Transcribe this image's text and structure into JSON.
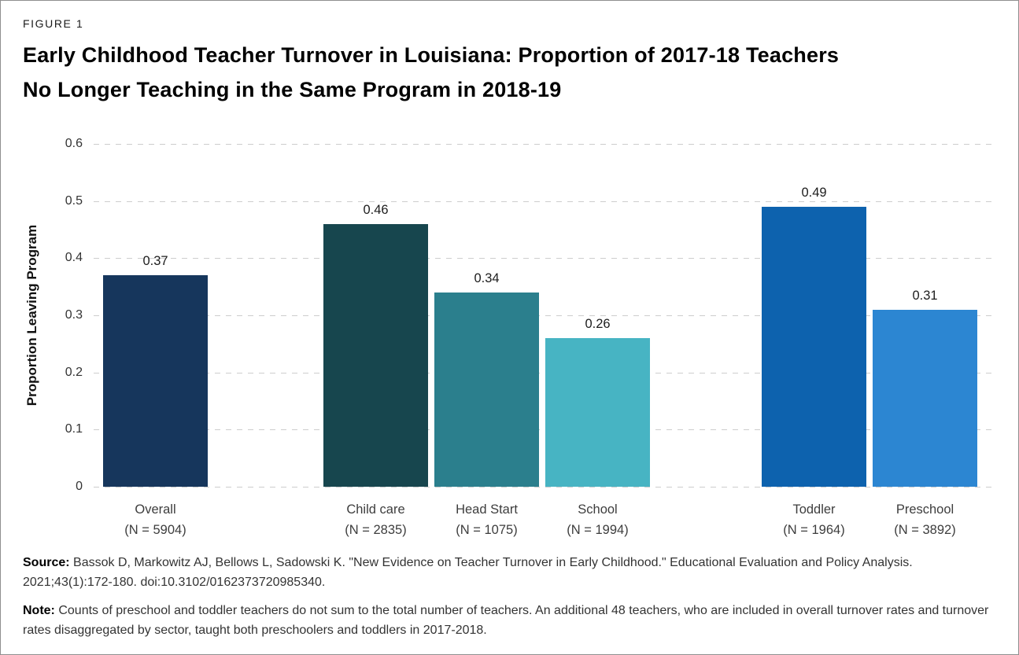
{
  "figure_label": "FIGURE 1",
  "title_line1": "Early Childhood Teacher Turnover in Louisiana: Proportion of 2017-18 Teachers",
  "title_line2": "No Longer Teaching in the Same Program in 2018-19",
  "chart_data": {
    "type": "bar",
    "title": "Early Childhood Teacher Turnover in Louisiana: Proportion of 2017-18 Teachers No Longer Teaching in the Same Program in 2018-19",
    "xlabel": "",
    "ylabel": "Proportion Leaving Program",
    "ylim": [
      0,
      0.6
    ],
    "yticks": [
      0,
      0.1,
      0.2,
      0.3,
      0.4,
      0.5,
      0.6
    ],
    "grid": "horizontal-dashed",
    "legend": "none",
    "categories": [
      "Overall",
      "Child care",
      "Head Start",
      "School",
      "Toddler",
      "Preschool"
    ],
    "values": [
      0.37,
      0.46,
      0.34,
      0.26,
      0.49,
      0.31
    ],
    "bars": [
      {
        "label": "Overall",
        "sublabel": "(N = 5904)",
        "value": 0.37,
        "value_label": "0.37",
        "color": "#16365c",
        "group": 0
      },
      {
        "label": "Child care",
        "sublabel": "(N = 2835)",
        "value": 0.46,
        "value_label": "0.46",
        "color": "#17464e",
        "group": 1
      },
      {
        "label": "Head Start",
        "sublabel": "(N = 1075)",
        "value": 0.34,
        "value_label": "0.34",
        "color": "#2b7f8d",
        "group": 1
      },
      {
        "label": "School",
        "sublabel": "(N = 1994)",
        "value": 0.26,
        "value_label": "0.26",
        "color": "#47b4c3",
        "group": 1
      },
      {
        "label": "Toddler",
        "sublabel": "(N = 1964)",
        "value": 0.49,
        "value_label": "0.49",
        "color": "#0d62ae",
        "group": 2
      },
      {
        "label": "Preschool",
        "sublabel": "(N = 3892)",
        "value": 0.31,
        "value_label": "0.31",
        "color": "#2c86d2",
        "group": 2
      }
    ]
  },
  "source": {
    "label": "Source:",
    "text": " Bassok D, Markowitz AJ, Bellows L, Sadowski K. \"New Evidence on Teacher Turnover in Early Childhood.\" Educational Evaluation and Policy Analysis. 2021;43(1):172-180. doi:10.3102/0162373720985340."
  },
  "note": {
    "label": "Note:",
    "text": " Counts of preschool and toddler teachers do not sum to the total number of teachers. An additional 48 teachers, who are included in overall turnover rates and turnover rates disaggregated by sector, taught both preschoolers and toddlers in 2017-2018."
  }
}
